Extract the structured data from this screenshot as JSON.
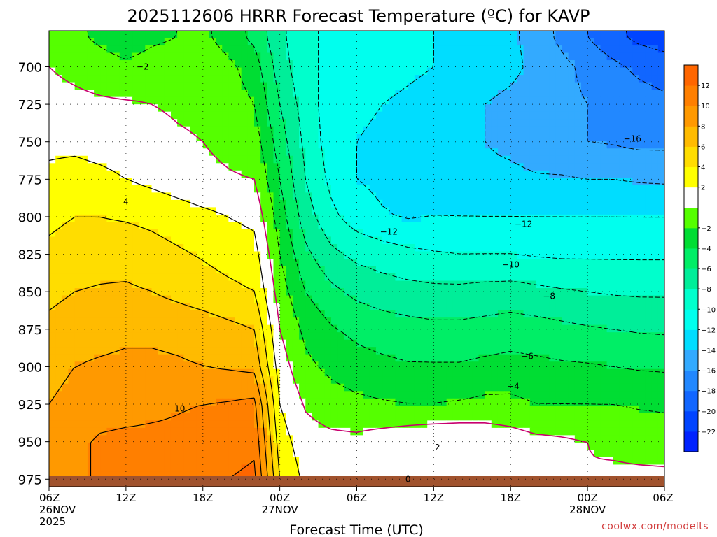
{
  "chart_data": {
    "type": "heatmap",
    "title": "2025112606 HRRR Forecast Temperature (ºC) for KAVP",
    "xlabel": "Forecast Time (UTC)",
    "ylabel": "",
    "credit": "coolwx.com/modelts",
    "y_scale": "pressure (inverted)",
    "ylim": [
      980,
      676
    ],
    "y_ticks": [
      700,
      725,
      750,
      775,
      800,
      825,
      850,
      875,
      900,
      925,
      950,
      975
    ],
    "xlim": [
      0,
      48
    ],
    "x_ticks": [
      {
        "x": 0,
        "lines": [
          "06Z",
          "26NOV",
          "2025"
        ]
      },
      {
        "x": 6,
        "lines": [
          "12Z"
        ]
      },
      {
        "x": 12,
        "lines": [
          "18Z"
        ]
      },
      {
        "x": 18,
        "lines": [
          "00Z",
          "27NOV"
        ]
      },
      {
        "x": 24,
        "lines": [
          "06Z"
        ]
      },
      {
        "x": 30,
        "lines": [
          "12Z"
        ]
      },
      {
        "x": 36,
        "lines": [
          "18Z"
        ]
      },
      {
        "x": 42,
        "lines": [
          "00Z",
          "28NOV"
        ]
      },
      {
        "x": 48,
        "lines": [
          "06Z"
        ]
      }
    ],
    "grid": true,
    "colorbar": {
      "levels": [
        -24,
        -22,
        -20,
        -18,
        -16,
        -14,
        -12,
        -10,
        -8,
        -6,
        -4,
        -2,
        0,
        2,
        4,
        6,
        8,
        10,
        12,
        14
      ],
      "labels": [
        "-22",
        "-20",
        "-18",
        "-16",
        "-14",
        "-12",
        "-10",
        "-8",
        "-6",
        "-4",
        "-2",
        "2",
        "4",
        "6",
        "8",
        "10",
        "12"
      ],
      "colors": [
        "#0022ff",
        "#0044ff",
        "#1166ff",
        "#2288ff",
        "#33aaff",
        "#00ddff",
        "#00ffee",
        "#00ffcc",
        "#00ee99",
        "#00ee66",
        "#00dd33",
        "#55ff00",
        "#ffffff",
        "#ffff00",
        "#ffdd00",
        "#ffbb00",
        "#ff9900",
        "#ff7f00",
        "#ff6600"
      ]
    },
    "x": [
      0,
      2,
      4,
      6,
      8,
      10,
      12,
      14,
      16,
      18,
      20,
      22,
      24,
      26,
      28,
      30,
      32,
      34,
      36,
      38,
      40,
      42,
      44,
      46,
      48
    ],
    "levels": [
      975,
      950,
      925,
      900,
      875,
      850,
      825,
      800,
      775,
      750,
      725,
      700,
      680
    ],
    "temperature": [
      [
        8.5,
        9.5,
        10.3,
        10.5,
        10.8,
        11.2,
        11.5,
        12.0,
        12.5,
        4.0,
        1.5,
        0.5,
        0.3,
        0.1,
        0.0,
        0.0,
        0.0,
        0.5,
        0.8,
        0.5,
        0.3,
        0.1,
        0.5,
        0.5,
        0.5
      ],
      [
        8.5,
        9.5,
        10.3,
        10.5,
        10.5,
        10.5,
        10.8,
        11.0,
        11.5,
        3.0,
        0.8,
        0.5,
        0.5,
        1.0,
        1.5,
        1.8,
        1.8,
        1.5,
        1.0,
        0.5,
        0.3,
        0.0,
        -0.5,
        -0.8,
        -1.0
      ],
      [
        8.0,
        8.5,
        9.0,
        9.2,
        9.5,
        9.8,
        10.0,
        10.2,
        10.5,
        2.0,
        -0.2,
        -1.0,
        -1.5,
        -1.8,
        -2.0,
        -2.0,
        -1.8,
        -1.5,
        -1.5,
        -2.0,
        -2.0,
        -2.0,
        -2.0,
        -2.2,
        -2.3
      ],
      [
        7.5,
        8.0,
        8.3,
        8.5,
        8.5,
        8.3,
        8.0,
        7.8,
        7.5,
        1.0,
        -1.5,
        -2.5,
        -3.2,
        -3.5,
        -3.8,
        -3.8,
        -3.8,
        -3.5,
        -3.3,
        -3.5,
        -3.7,
        -3.8,
        -4.0,
        -4.2,
        -4.3
      ],
      [
        6.5,
        7.0,
        7.2,
        7.5,
        7.5,
        7.3,
        7.0,
        6.5,
        6.0,
        0.0,
        -2.5,
        -3.8,
        -4.5,
        -5.0,
        -5.3,
        -5.5,
        -5.5,
        -5.3,
        -5.0,
        -5.2,
        -5.5,
        -5.8,
        -6.0,
        -6.2,
        -6.3
      ],
      [
        5.5,
        6.0,
        6.2,
        6.3,
        6.0,
        5.5,
        5.0,
        4.5,
        4.0,
        -1.0,
        -4.0,
        -5.5,
        -6.5,
        -7.0,
        -7.3,
        -7.5,
        -7.5,
        -7.3,
        -7.2,
        -7.5,
        -7.8,
        -8.0,
        -8.2,
        -8.3,
        -8.3
      ],
      [
        4.5,
        5.0,
        5.2,
        5.2,
        4.8,
        4.3,
        3.8,
        3.2,
        2.8,
        -2.0,
        -5.5,
        -7.5,
        -8.5,
        -9.0,
        -9.5,
        -9.8,
        -10.0,
        -10.0,
        -10.0,
        -10.2,
        -10.3,
        -10.3,
        -10.3,
        -10.3,
        -10.3
      ],
      [
        3.5,
        4.0,
        4.0,
        3.8,
        3.5,
        3.0,
        2.5,
        2.0,
        1.5,
        -3.0,
        -7.0,
        -9.5,
        -11.0,
        -11.8,
        -12.2,
        -12.0,
        -12.0,
        -12.0,
        -12.0,
        -12.0,
        -12.0,
        -12.0,
        -12.0,
        -12.0,
        -12.0
      ],
      [
        2.5,
        2.8,
        2.5,
        2.0,
        1.5,
        1.0,
        0.5,
        0.2,
        0.0,
        -4.0,
        -8.0,
        -10.5,
        -12.0,
        -12.5,
        -12.5,
        -12.5,
        -13.0,
        -13.5,
        -13.5,
        -13.8,
        -13.8,
        -14.0,
        -14.0,
        -14.2,
        -14.3
      ],
      [
        1.5,
        1.5,
        1.2,
        1.0,
        0.8,
        0.3,
        0.0,
        -0.5,
        -1.0,
        -5.0,
        -8.5,
        -11.0,
        -12.0,
        -12.5,
        -12.8,
        -13.0,
        -13.5,
        -14.0,
        -14.5,
        -15.0,
        -15.5,
        -16.0,
        -16.2,
        -16.5,
        -16.5
      ],
      [
        0.7,
        0.5,
        0.3,
        0.2,
        0.0,
        -0.3,
        -0.5,
        -1.0,
        -2.0,
        -6.0,
        -9.0,
        -11.0,
        -11.5,
        -12.0,
        -12.5,
        -13.0,
        -13.5,
        -14.0,
        -14.5,
        -15.0,
        -15.5,
        -16.0,
        -16.5,
        -17.0,
        -17.5
      ],
      [
        0.0,
        -0.5,
        -1.0,
        -1.5,
        -1.0,
        -0.8,
        -0.5,
        -1.5,
        -3.0,
        -7.0,
        -9.5,
        -10.5,
        -10.8,
        -11.0,
        -11.5,
        -12.0,
        -12.5,
        -13.0,
        -13.5,
        -14.5,
        -15.5,
        -16.5,
        -17.5,
        -18.5,
        -19.0
      ],
      [
        -0.5,
        -1.5,
        -2.5,
        -3.5,
        -2.5,
        -2.0,
        -1.5,
        -3.0,
        -4.5,
        -7.5,
        -9.5,
        -10.5,
        -10.8,
        -11.0,
        -11.5,
        -12.0,
        -12.5,
        -13.0,
        -13.5,
        -15.0,
        -16.5,
        -18.0,
        -19.5,
        -20.5,
        -21.0
      ]
    ],
    "contour_labels": [
      {
        "text": "-2",
        "x": 7.3,
        "p": 700
      },
      {
        "text": "4",
        "x": 6.0,
        "p": 790
      },
      {
        "text": "10",
        "x": 10.2,
        "p": 928
      },
      {
        "text": "-12",
        "x": 26.5,
        "p": 810
      },
      {
        "text": "-12",
        "x": 37.0,
        "p": 805
      },
      {
        "text": "-16",
        "x": 45.5,
        "p": 748
      },
      {
        "text": "-10",
        "x": 36.0,
        "p": 832
      },
      {
        "text": "-8",
        "x": 39.0,
        "p": 853
      },
      {
        "text": "-6",
        "x": 37.3,
        "p": 893
      },
      {
        "text": "-4",
        "x": 36.2,
        "p": 913
      },
      {
        "text": "2",
        "x": 30.3,
        "p": 954
      },
      {
        "text": "0",
        "x": 28.0,
        "p": 975
      }
    ]
  }
}
